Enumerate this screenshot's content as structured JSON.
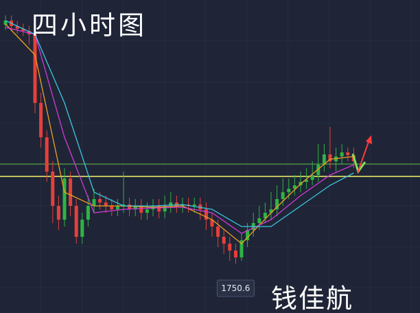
{
  "chart_data": {
    "type": "candlestick",
    "title": "四小时图",
    "signature": "钱佳航",
    "low_label": 1750.6,
    "ylim": [
      1722,
      1904.4
    ],
    "categories": [
      null,
      null,
      null,
      null,
      null,
      null,
      null,
      null,
      null,
      null,
      null,
      null,
      null,
      null,
      null,
      null,
      null,
      null,
      null,
      null,
      null,
      null,
      null,
      null,
      null,
      null,
      null,
      null,
      null,
      null,
      null,
      null,
      null,
      null,
      null,
      null,
      null,
      null,
      null,
      null,
      null,
      null,
      null,
      null,
      null,
      null,
      null,
      null,
      null,
      null,
      null,
      null,
      null,
      null,
      null,
      null,
      null,
      null,
      null,
      null
    ],
    "open": [
      1890.0,
      1892.4,
      1889.2,
      1887.6,
      1886.4,
      1884.4,
      1844.4,
      1824.4,
      1804.4,
      1784.4,
      1776.4,
      1800.4,
      1784.4,
      1766.4,
      1776.4,
      1784.4,
      1788.4,
      1786.4,
      1784.4,
      1782.4,
      1784.4,
      1785.2,
      1782.4,
      1784.4,
      1780.4,
      1782.4,
      1784.4,
      1781.2,
      1784.4,
      1786.4,
      1784.4,
      1785.2,
      1784.4,
      1785.2,
      1782.4,
      1776.4,
      1772.4,
      1766.4,
      1762.4,
      1758.4,
      1754.4,
      1764.4,
      1770.4,
      1774.4,
      1777.2,
      1780.4,
      1782.4,
      1788.4,
      1792.4,
      1794.4,
      1796.4,
      1798.4,
      1799.6,
      1802.4,
      1808.4,
      1814.4,
      1810.4,
      1813.2,
      1815.6,
      1814.0
    ],
    "high": [
      1895.4,
      1895.4,
      1892.2,
      1890.6,
      1889.4,
      1887.4,
      1850.4,
      1828.4,
      1810.4,
      1790.4,
      1806.4,
      1804.4,
      1788.4,
      1780.4,
      1790.4,
      1794.4,
      1792.4,
      1790.4,
      1788.4,
      1788.4,
      1804.4,
      1789.2,
      1788.4,
      1788.4,
      1786.4,
      1788.4,
      1788.4,
      1790.4,
      1792.4,
      1790.4,
      1789.2,
      1789.2,
      1789.2,
      1789.2,
      1786.4,
      1780.4,
      1776.4,
      1770.4,
      1766.4,
      1762.4,
      1768.4,
      1774.4,
      1780.4,
      1784.4,
      1786.4,
      1792.4,
      1796.4,
      1800.4,
      1800.4,
      1802.4,
      1804.4,
      1806.4,
      1810.4,
      1820.4,
      1820.4,
      1830.4,
      1818.4,
      1820.4,
      1818.4,
      1818.4
    ],
    "low": [
      1887.0,
      1886.2,
      1884.6,
      1883.4,
      1878.4,
      1838.4,
      1818.4,
      1798.4,
      1774.4,
      1770.4,
      1772.4,
      1778.4,
      1762.4,
      1762.4,
      1772.4,
      1780.4,
      1782.4,
      1780.4,
      1778.4,
      1778.4,
      1780.4,
      1778.4,
      1778.4,
      1776.4,
      1776.4,
      1778.4,
      1777.2,
      1777.2,
      1780.4,
      1780.4,
      1780.4,
      1780.4,
      1780.4,
      1776.4,
      1770.4,
      1766.4,
      1760.4,
      1756.4,
      1752.4,
      1750.6,
      1752.4,
      1760.4,
      1766.4,
      1770.4,
      1774.4,
      1776.4,
      1778.4,
      1784.4,
      1788.4,
      1790.4,
      1792.4,
      1794.4,
      1796.4,
      1798.4,
      1804.4,
      1806.4,
      1804.4,
      1808.4,
      1810.4,
      1806.4
    ],
    "close": [
      1892.4,
      1889.2,
      1887.6,
      1886.4,
      1884.4,
      1844.4,
      1824.4,
      1804.4,
      1784.4,
      1776.4,
      1800.4,
      1784.4,
      1766.4,
      1776.4,
      1784.4,
      1788.4,
      1786.4,
      1784.4,
      1782.4,
      1784.4,
      1785.2,
      1782.4,
      1784.4,
      1780.4,
      1782.4,
      1784.4,
      1781.2,
      1784.4,
      1786.4,
      1784.4,
      1785.2,
      1784.4,
      1785.2,
      1782.4,
      1776.4,
      1772.4,
      1766.4,
      1762.4,
      1758.4,
      1754.4,
      1764.4,
      1770.4,
      1774.4,
      1777.2,
      1780.4,
      1782.4,
      1788.4,
      1792.4,
      1794.4,
      1796.4,
      1798.4,
      1799.6,
      1802.4,
      1808.4,
      1814.4,
      1810.4,
      1813.2,
      1815.6,
      1814.0,
      1810.4
    ],
    "up_color": "#2fb344",
    "down_color": "#e5403a",
    "lines": [
      {
        "color": "#f0a020",
        "x": [
          0,
          5,
          10,
          15,
          20,
          25,
          30,
          35,
          40,
          45,
          50,
          55,
          59
        ],
        "values": [
          1890.4,
          1872.4,
          1792.4,
          1784.4,
          1784.4,
          1783.6,
          1784.4,
          1776.4,
          1762.4,
          1780.4,
          1797.2,
          1811.6,
          1813.2
        ]
      },
      {
        "color": "#d23ad8",
        "x": [
          0,
          5,
          10,
          15,
          20,
          25,
          30,
          35,
          40,
          45,
          50,
          55,
          59
        ],
        "values": [
          1888.4,
          1884.4,
          1824.4,
          1780.4,
          1782.4,
          1783.2,
          1783.6,
          1780.4,
          1768.4,
          1776.4,
          1790.4,
          1802.4,
          1808.4
        ]
      },
      {
        "color": "#3cc8e0",
        "x": [
          0,
          5,
          10,
          15,
          20,
          25,
          30,
          35,
          40,
          45,
          50,
          55,
          59
        ],
        "values": [
          1892.4,
          1884.4,
          1844.4,
          1792.4,
          1784.4,
          1784.4,
          1785.2,
          1782.4,
          1772.4,
          1772.4,
          1784.4,
          1796.4,
          1803.6
        ]
      }
    ],
    "levels": [
      {
        "value": 1808.8,
        "color": "#5fbf3f"
      },
      {
        "value": 1801.6,
        "color": "#f5f56a"
      }
    ]
  }
}
